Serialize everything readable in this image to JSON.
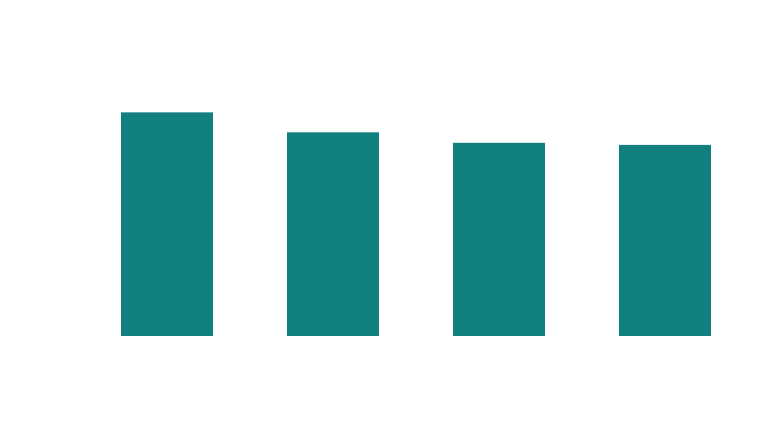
{
  "chart_data": {
    "type": "bar",
    "categories": [
      "",
      "",
      "",
      ""
    ],
    "values": [
      213,
      194,
      184,
      182
    ],
    "ylim": [
      0,
      320
    ],
    "colors": {
      "bar": "#12807e",
      "background": "#ffffff"
    },
    "grid": false,
    "legend": "none",
    "title": "",
    "xlabel": "",
    "ylabel": ""
  }
}
